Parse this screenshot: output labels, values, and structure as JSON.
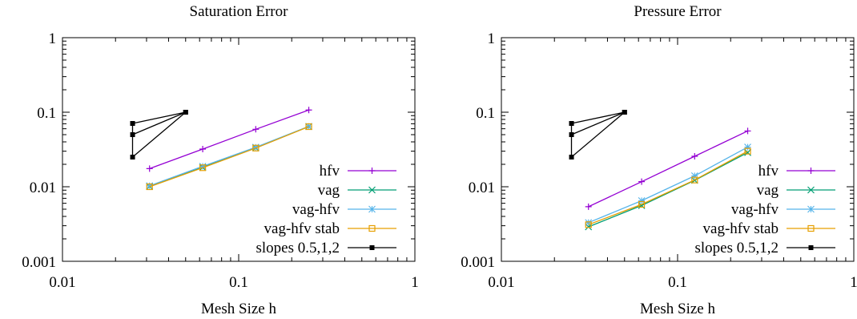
{
  "chart_data": [
    {
      "type": "line",
      "title": "Saturation Error",
      "xlabel": "Mesh Size h",
      "ylabel": "",
      "xscale": "log",
      "yscale": "log",
      "xlim": [
        0.01,
        1
      ],
      "ylim": [
        0.001,
        1
      ],
      "xticks": [
        "0.01",
        "0.1",
        "1"
      ],
      "yticks": [
        "0.001",
        "0.01",
        "0.1",
        "1"
      ],
      "grid": false,
      "legend_position": "bottom-right",
      "series": [
        {
          "name": "hfv",
          "color": "#9400d3",
          "marker": "plus",
          "x": [
            0.0312,
            0.0625,
            0.125,
            0.25
          ],
          "y": [
            0.0175,
            0.032,
            0.059,
            0.107
          ]
        },
        {
          "name": "vag",
          "color": "#009e73",
          "marker": "cross",
          "x": [
            0.0312,
            0.0625,
            0.125,
            0.25
          ],
          "y": [
            0.0101,
            0.0182,
            0.0333,
            0.0643
          ]
        },
        {
          "name": "vag-hfv",
          "color": "#56b4e9",
          "marker": "star",
          "x": [
            0.0312,
            0.0625,
            0.125,
            0.25
          ],
          "y": [
            0.0103,
            0.0188,
            0.0339,
            0.0645
          ]
        },
        {
          "name": "vag-hfv stab",
          "color": "#e69f00",
          "marker": "square",
          "x": [
            0.0312,
            0.0625,
            0.125,
            0.25
          ],
          "y": [
            0.01,
            0.018,
            0.033,
            0.064
          ]
        },
        {
          "name": "slopes 0.5,1,2",
          "color": "#000000",
          "marker": "filled-square",
          "x": [
            0.025,
            0.05,
            0.025,
            0.05,
            0.025,
            0.025
          ],
          "y": [
            0.0707,
            0.1,
            0.05,
            0.1,
            0.025,
            0.0707
          ]
        }
      ]
    },
    {
      "type": "line",
      "title": "Pressure Error",
      "xlabel": "Mesh Size h",
      "ylabel": "",
      "xscale": "log",
      "yscale": "log",
      "xlim": [
        0.01,
        1
      ],
      "ylim": [
        0.001,
        1
      ],
      "xticks": [
        "0.01",
        "0.1",
        "1"
      ],
      "yticks": [
        "0.001",
        "0.01",
        "0.1",
        "1"
      ],
      "grid": false,
      "legend_position": "bottom-right",
      "series": [
        {
          "name": "hfv",
          "color": "#9400d3",
          "marker": "plus",
          "x": [
            0.0312,
            0.0625,
            0.125,
            0.25
          ],
          "y": [
            0.0054,
            0.0117,
            0.0256,
            0.056
          ]
        },
        {
          "name": "vag",
          "color": "#009e73",
          "marker": "cross",
          "x": [
            0.0312,
            0.0625,
            0.125,
            0.25
          ],
          "y": [
            0.0029,
            0.0056,
            0.0122,
            0.0288
          ]
        },
        {
          "name": "vag-hfv",
          "color": "#56b4e9",
          "marker": "star",
          "x": [
            0.0312,
            0.0625,
            0.125,
            0.25
          ],
          "y": [
            0.0033,
            0.0065,
            0.014,
            0.034
          ]
        },
        {
          "name": "vag-hfv stab",
          "color": "#e69f00",
          "marker": "square",
          "x": [
            0.0312,
            0.0625,
            0.125,
            0.25
          ],
          "y": [
            0.0031,
            0.0058,
            0.0123,
            0.03
          ]
        },
        {
          "name": "slopes 0.5,1,2",
          "color": "#000000",
          "marker": "filled-square",
          "x": [
            0.025,
            0.05,
            0.025,
            0.05,
            0.025,
            0.025
          ],
          "y": [
            0.0707,
            0.1,
            0.05,
            0.1,
            0.025,
            0.0707
          ]
        }
      ]
    }
  ]
}
